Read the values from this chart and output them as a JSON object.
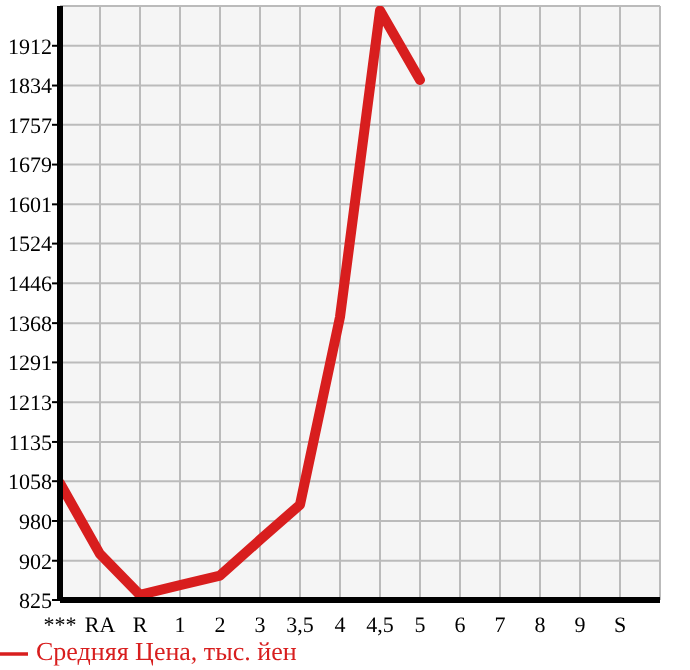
{
  "chart_data": {
    "type": "line",
    "categories": [
      "***",
      "RA",
      "R",
      "1",
      "2",
      "3",
      "3,5",
      "4",
      "4,5",
      "5",
      "6",
      "7",
      "8",
      "9",
      "S"
    ],
    "series": [
      {
        "name": "Средняя Цена, тыс. йен",
        "color": "#d81e1e",
        "values": [
          1054,
          915,
          835,
          854,
          873,
          943,
          1012,
          1380,
          1981,
          1845,
          null,
          null,
          null,
          null,
          null
        ]
      }
    ],
    "ylim": [
      825,
      1990
    ],
    "yticks": [
      825,
      902,
      980,
      1058,
      1135,
      1213,
      1291,
      1368,
      1446,
      1524,
      1601,
      1679,
      1757,
      1834,
      1912
    ],
    "grid": true,
    "legend": "bottom left",
    "marker": "none",
    "line_style": "solid"
  }
}
